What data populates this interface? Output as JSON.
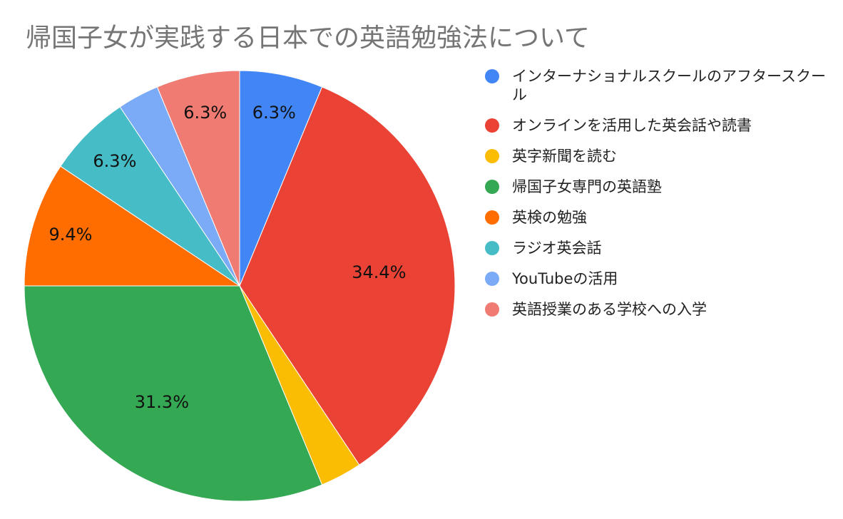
{
  "chart_data": {
    "type": "pie",
    "title": "帰国子女が実践する日本での英語勉強法について",
    "legend_position": "right",
    "slices": [
      {
        "name": "インターナショナルスクールのアフタースクール",
        "value": 6.25,
        "label": "6.3%",
        "color": "#4285F4"
      },
      {
        "name": "オンラインを活用した英会話や読書",
        "value": 34.375,
        "label": "34.4%",
        "color": "#EA4335"
      },
      {
        "name": "英字新聞を読む",
        "value": 3.125,
        "label": "",
        "color": "#FBBC04"
      },
      {
        "name": "帰国子女専門の英語塾",
        "value": 31.25,
        "label": "31.3%",
        "color": "#34A853"
      },
      {
        "name": "英検の勉強",
        "value": 9.375,
        "label": "9.4%",
        "color": "#FF6D01"
      },
      {
        "name": "ラジオ英会話",
        "value": 6.25,
        "label": "6.3%",
        "color": "#46BDC6"
      },
      {
        "name": "YouTubeの活用",
        "value": 3.125,
        "label": "",
        "color": "#7BAAF7"
      },
      {
        "name": "英語授業のある学校への入学",
        "value": 6.25,
        "label": "6.3%",
        "color": "#F07B72"
      }
    ]
  }
}
